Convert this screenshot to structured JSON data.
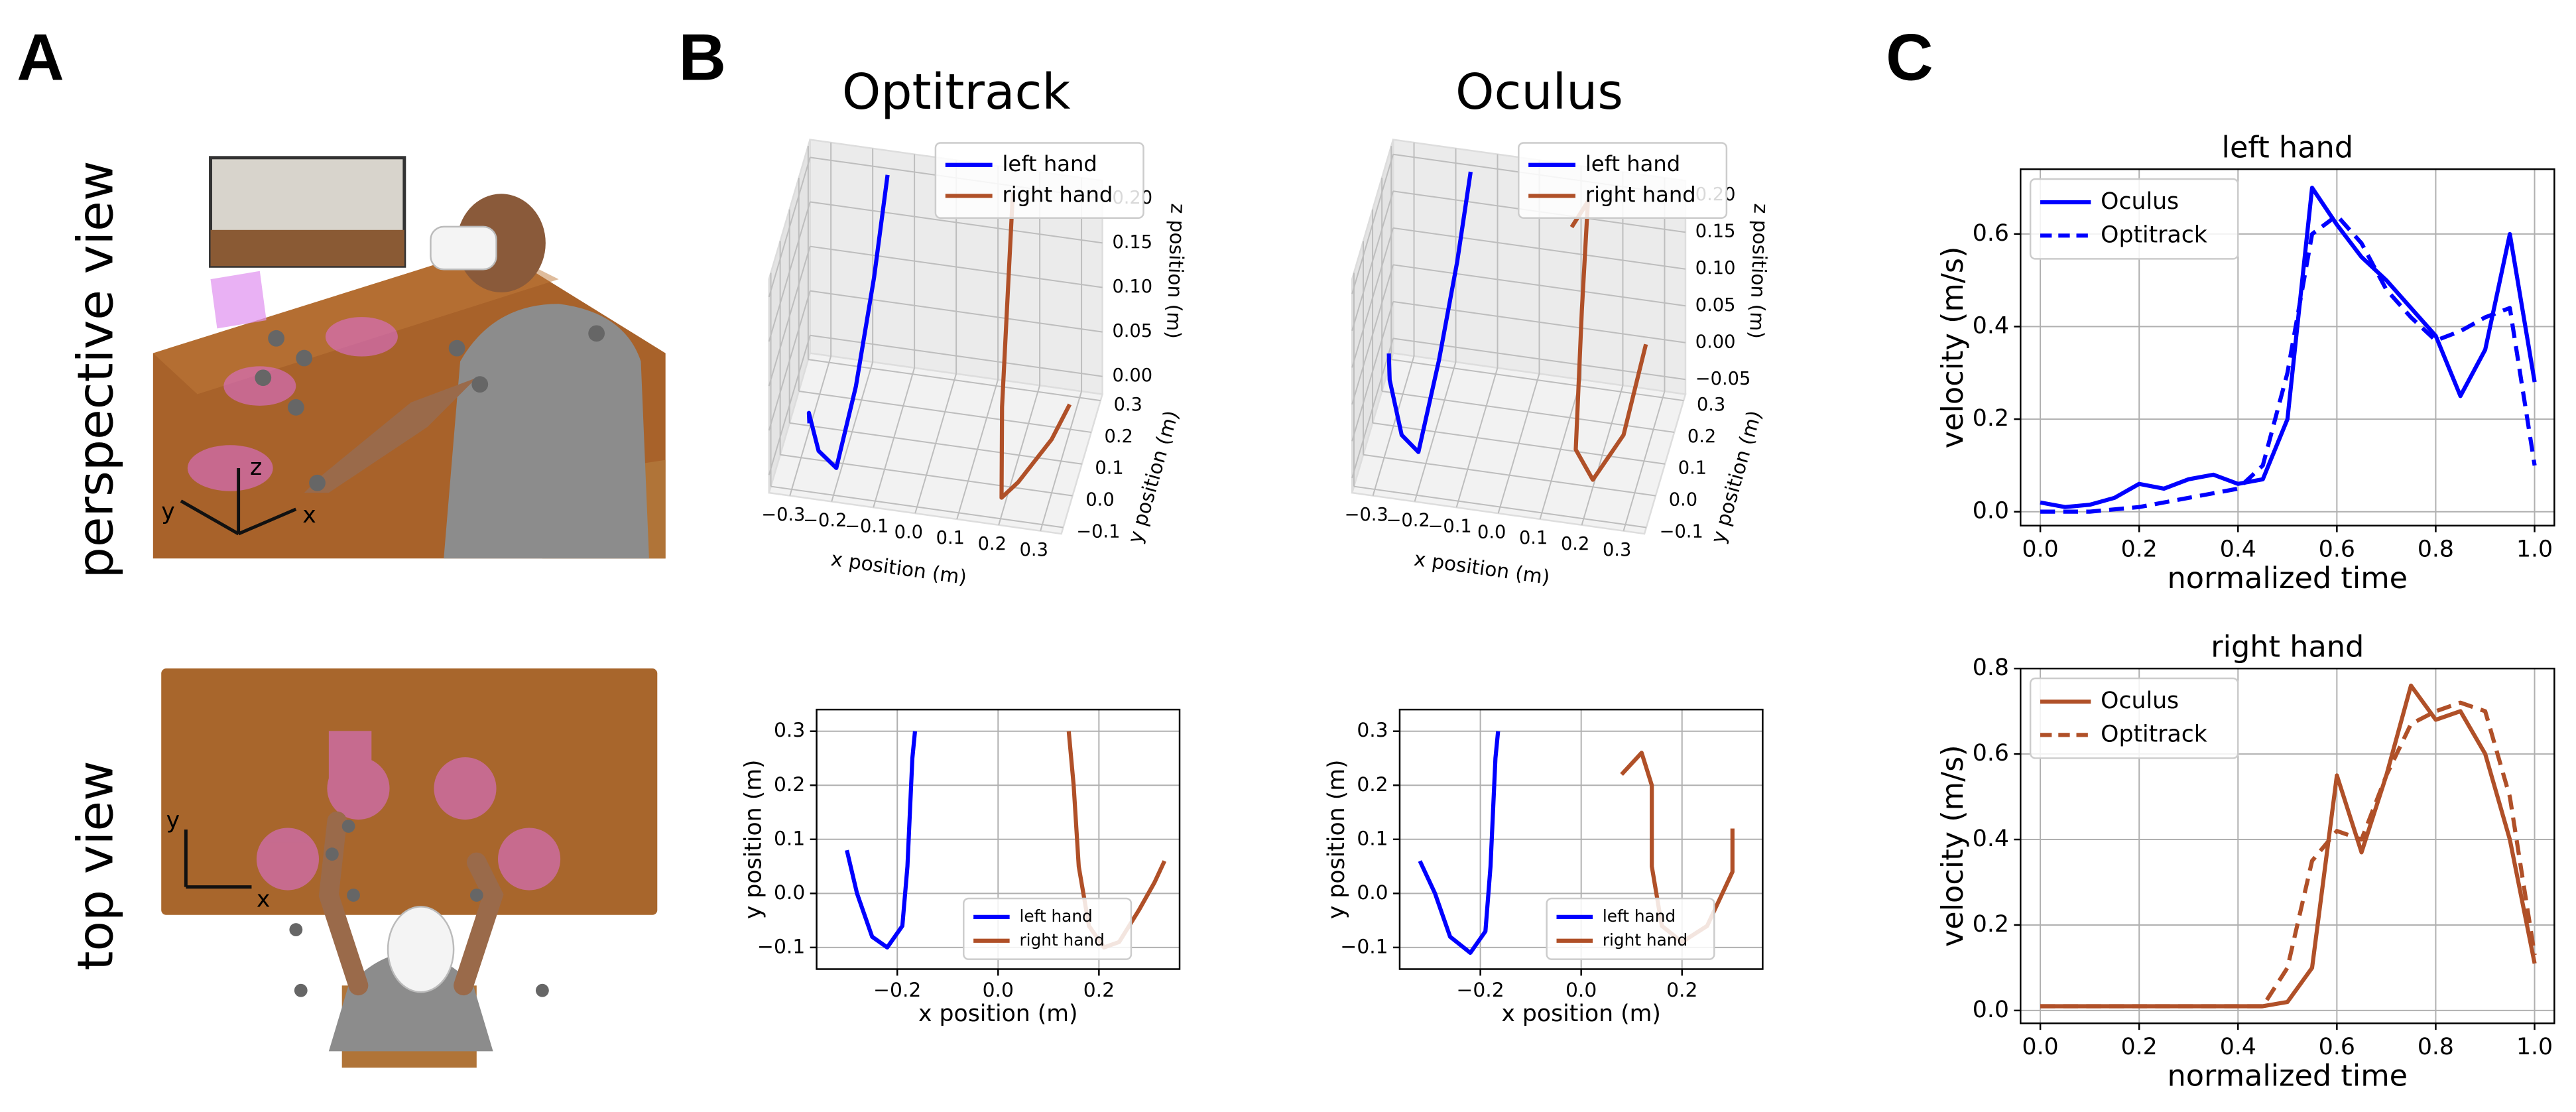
{
  "panel_letters": [
    "A",
    "B",
    "C"
  ],
  "panel_a": {
    "row_labels": [
      "perspective view",
      "top view"
    ],
    "perspective_axes": [
      "z",
      "y",
      "x"
    ],
    "top_axes": [
      "y",
      "x"
    ]
  },
  "chart_data": [
    {
      "type": "line3d",
      "title": "Optitrack",
      "xlabel": "x position (m)",
      "ylabel": "y position (m)",
      "zlabel": "z position (m)",
      "xlim": [
        -0.35,
        0.35
      ],
      "ylim": [
        -0.12,
        0.32
      ],
      "zlim": [
        -0.02,
        0.22
      ],
      "xticks": [
        {
          "value": -0.3,
          "label": "−0.3"
        },
        {
          "value": -0.2,
          "label": "−0.2"
        },
        {
          "value": -0.1,
          "label": "−0.1"
        },
        {
          "value": 0,
          "label": "0.0"
        },
        0.1,
        0.2,
        0.3
      ],
      "yticks": [
        {
          "value": -0.1,
          "label": "−0.1"
        },
        {
          "value": 0,
          "label": "0.0"
        },
        0.1,
        0.2,
        0.3
      ],
      "zticks": [
        {
          "value": 0,
          "label": "0.00"
        },
        0.05,
        {
          "value": 0.1,
          "label": "0.10"
        },
        0.15,
        {
          "value": 0.2,
          "label": "0.20"
        }
      ],
      "grid": true,
      "legend": "upper right",
      "series": [
        {
          "name": "left hand",
          "color": "#0000ff",
          "x": [
            -0.28,
            -0.27,
            -0.24,
            -0.2,
            -0.18,
            -0.17,
            -0.16
          ],
          "y": [
            0.0,
            -0.05,
            -0.08,
            -0.07,
            0.05,
            0.2,
            0.3
          ],
          "z": [
            0.02,
            0.05,
            0.02,
            0.0,
            0.05,
            0.12,
            0.2
          ]
        },
        {
          "name": "right hand",
          "color": "#b05028",
          "x": [
            0.33,
            0.3,
            0.24,
            0.2,
            0.17,
            0.15,
            0.14
          ],
          "y": [
            0.06,
            0.0,
            -0.09,
            -0.09,
            0.05,
            0.2,
            0.3
          ],
          "z": [
            0.06,
            0.04,
            0.02,
            0.0,
            0.05,
            0.12,
            0.2
          ]
        }
      ]
    },
    {
      "type": "line3d",
      "title": "Oculus",
      "xlabel": "x position (m)",
      "ylabel": "y position (m)",
      "zlabel": "z position (m)",
      "xlim": [
        -0.35,
        0.35
      ],
      "ylim": [
        -0.12,
        0.32
      ],
      "zlim": [
        -0.07,
        0.22
      ],
      "xticks": [
        {
          "value": -0.3,
          "label": "−0.3"
        },
        {
          "value": -0.2,
          "label": "−0.2"
        },
        {
          "value": -0.1,
          "label": "−0.1"
        },
        {
          "value": 0,
          "label": "0.0"
        },
        0.1,
        0.2,
        0.3
      ],
      "yticks": [
        {
          "value": -0.1,
          "label": "−0.1"
        },
        {
          "value": 0,
          "label": "0.0"
        },
        0.1,
        0.2,
        0.3
      ],
      "zticks": [
        {
          "value": -0.05,
          "label": "−0.05"
        },
        {
          "value": 0,
          "label": "0.00"
        },
        0.05,
        {
          "value": 0.1,
          "label": "0.10"
        },
        0.15,
        {
          "value": 0.2,
          "label": "0.20"
        }
      ],
      "grid": true,
      "legend": "upper right",
      "series": [
        {
          "name": "left hand",
          "color": "#0000ff",
          "x": [
            -0.3,
            -0.28,
            -0.24,
            -0.2,
            -0.18,
            -0.17,
            -0.16
          ],
          "y": [
            0.05,
            -0.03,
            -0.08,
            -0.08,
            0.05,
            0.2,
            0.3
          ],
          "z": [
            0.05,
            0.05,
            0.0,
            -0.02,
            0.05,
            0.12,
            0.2
          ]
        },
        {
          "name": "right hand",
          "color": "#b05028",
          "x": [
            0.1,
            0.13,
            0.14,
            0.17,
            0.22,
            0.28,
            0.3
          ],
          "y": [
            0.22,
            0.26,
            0.15,
            -0.05,
            -0.09,
            -0.03,
            0.12
          ],
          "z": [
            0.18,
            0.2,
            0.1,
            0.0,
            -0.02,
            0.02,
            0.08
          ]
        }
      ]
    },
    {
      "type": "line",
      "xlabel": "x position (m)",
      "ylabel": "y position (m)",
      "xlim": [
        -0.36,
        0.36
      ],
      "ylim": [
        -0.14,
        0.34
      ],
      "xticks": [
        {
          "value": -0.2,
          "label": "−0.2"
        },
        {
          "value": 0,
          "label": "0.0"
        },
        0.2
      ],
      "yticks": [
        {
          "value": -0.1,
          "label": "−0.1"
        },
        {
          "value": 0,
          "label": "0.0"
        },
        0.1,
        0.2,
        0.3
      ],
      "grid": true,
      "legend": "lower center",
      "series": [
        {
          "name": "left hand",
          "color": "#0000ff",
          "x": [
            -0.3,
            -0.28,
            -0.25,
            -0.22,
            -0.19,
            -0.18,
            -0.175,
            -0.17,
            -0.165
          ],
          "y": [
            0.08,
            0.0,
            -0.08,
            -0.1,
            -0.06,
            0.05,
            0.15,
            0.25,
            0.3
          ]
        },
        {
          "name": "right hand",
          "color": "#b05028",
          "x": [
            0.14,
            0.15,
            0.16,
            0.18,
            0.21,
            0.24,
            0.28,
            0.31,
            0.33
          ],
          "y": [
            0.3,
            0.2,
            0.05,
            -0.06,
            -0.1,
            -0.09,
            -0.03,
            0.02,
            0.06
          ]
        }
      ]
    },
    {
      "type": "line",
      "xlabel": "x position (m)",
      "ylabel": "y position (m)",
      "xlim": [
        -0.36,
        0.36
      ],
      "ylim": [
        -0.14,
        0.34
      ],
      "xticks": [
        {
          "value": -0.2,
          "label": "−0.2"
        },
        {
          "value": 0,
          "label": "0.0"
        },
        0.2
      ],
      "yticks": [
        {
          "value": -0.1,
          "label": "−0.1"
        },
        {
          "value": 0,
          "label": "0.0"
        },
        0.1,
        0.2,
        0.3
      ],
      "grid": true,
      "legend": "lower center",
      "series": [
        {
          "name": "left hand",
          "color": "#0000ff",
          "x": [
            -0.32,
            -0.29,
            -0.26,
            -0.22,
            -0.19,
            -0.18,
            -0.175,
            -0.17,
            -0.165
          ],
          "y": [
            0.06,
            0.0,
            -0.08,
            -0.11,
            -0.07,
            0.05,
            0.15,
            0.25,
            0.3
          ]
        },
        {
          "name": "right hand",
          "color": "#b05028",
          "x": [
            0.08,
            0.12,
            0.14,
            0.14,
            0.16,
            0.2,
            0.25,
            0.3,
            0.3
          ],
          "y": [
            0.22,
            0.26,
            0.2,
            0.05,
            -0.06,
            -0.09,
            -0.06,
            0.04,
            0.12
          ]
        }
      ]
    },
    {
      "type": "line",
      "title": "left hand",
      "xlabel": "normalized time",
      "ylabel": "velocity (m/s)",
      "xlim": [
        -0.04,
        1.04
      ],
      "ylim": [
        -0.03,
        0.74
      ],
      "xticks": [
        {
          "value": 0,
          "label": "0.0"
        },
        0.2,
        0.4,
        0.6,
        0.8,
        {
          "value": 1,
          "label": "1.0"
        }
      ],
      "yticks": [
        {
          "value": 0,
          "label": "0.0"
        },
        0.2,
        0.4,
        0.6
      ],
      "grid": true,
      "legend": "upper left",
      "x": [
        0,
        0.05,
        0.1,
        0.15,
        0.2,
        0.25,
        0.3,
        0.35,
        0.4,
        0.45,
        0.5,
        0.55,
        0.6,
        0.65,
        0.7,
        0.75,
        0.8,
        0.85,
        0.9,
        0.95,
        1.0
      ],
      "series": [
        {
          "name": "Oculus",
          "color": "#0000ff",
          "linestyle": "solid",
          "values": [
            0.02,
            0.01,
            0.015,
            0.03,
            0.06,
            0.05,
            0.07,
            0.08,
            0.06,
            0.07,
            0.2,
            0.7,
            0.62,
            0.55,
            0.5,
            0.44,
            0.38,
            0.25,
            0.35,
            0.6,
            0.28
          ]
        },
        {
          "name": "Optitrack",
          "color": "#0000ff",
          "linestyle": "dashed",
          "values": [
            0,
            0,
            0,
            0.005,
            0.01,
            0.02,
            0.03,
            0.04,
            0.05,
            0.1,
            0.3,
            0.6,
            0.64,
            0.58,
            0.48,
            0.42,
            0.37,
            0.39,
            0.42,
            0.44,
            0.1
          ]
        }
      ]
    },
    {
      "type": "line",
      "title": "right hand",
      "xlabel": "normalized time",
      "ylabel": "velocity (m/s)",
      "xlim": [
        -0.04,
        1.04
      ],
      "ylim": [
        -0.03,
        0.8
      ],
      "xticks": [
        {
          "value": 0,
          "label": "0.0"
        },
        0.2,
        0.4,
        0.6,
        0.8,
        {
          "value": 1,
          "label": "1.0"
        }
      ],
      "yticks": [
        {
          "value": 0,
          "label": "0.0"
        },
        0.2,
        0.4,
        0.6,
        0.8
      ],
      "grid": true,
      "legend": "upper left",
      "x": [
        0,
        0.05,
        0.1,
        0.15,
        0.2,
        0.25,
        0.3,
        0.35,
        0.4,
        0.45,
        0.5,
        0.55,
        0.6,
        0.65,
        0.7,
        0.75,
        0.8,
        0.85,
        0.9,
        0.95,
        1.0
      ],
      "series": [
        {
          "name": "Oculus",
          "color": "#b05028",
          "linestyle": "solid",
          "values": [
            0.01,
            0.01,
            0.01,
            0.01,
            0.01,
            0.01,
            0.01,
            0.01,
            0.01,
            0.01,
            0.02,
            0.1,
            0.55,
            0.37,
            0.55,
            0.76,
            0.68,
            0.7,
            0.6,
            0.4,
            0.11
          ]
        },
        {
          "name": "Optitrack",
          "color": "#b05028",
          "linestyle": "dashed",
          "values": [
            0.01,
            0.01,
            0.01,
            0.01,
            0.01,
            0.01,
            0.01,
            0.01,
            0.01,
            0.01,
            0.1,
            0.35,
            0.42,
            0.4,
            0.55,
            0.67,
            0.7,
            0.72,
            0.7,
            0.5,
            0.13
          ]
        }
      ]
    }
  ]
}
